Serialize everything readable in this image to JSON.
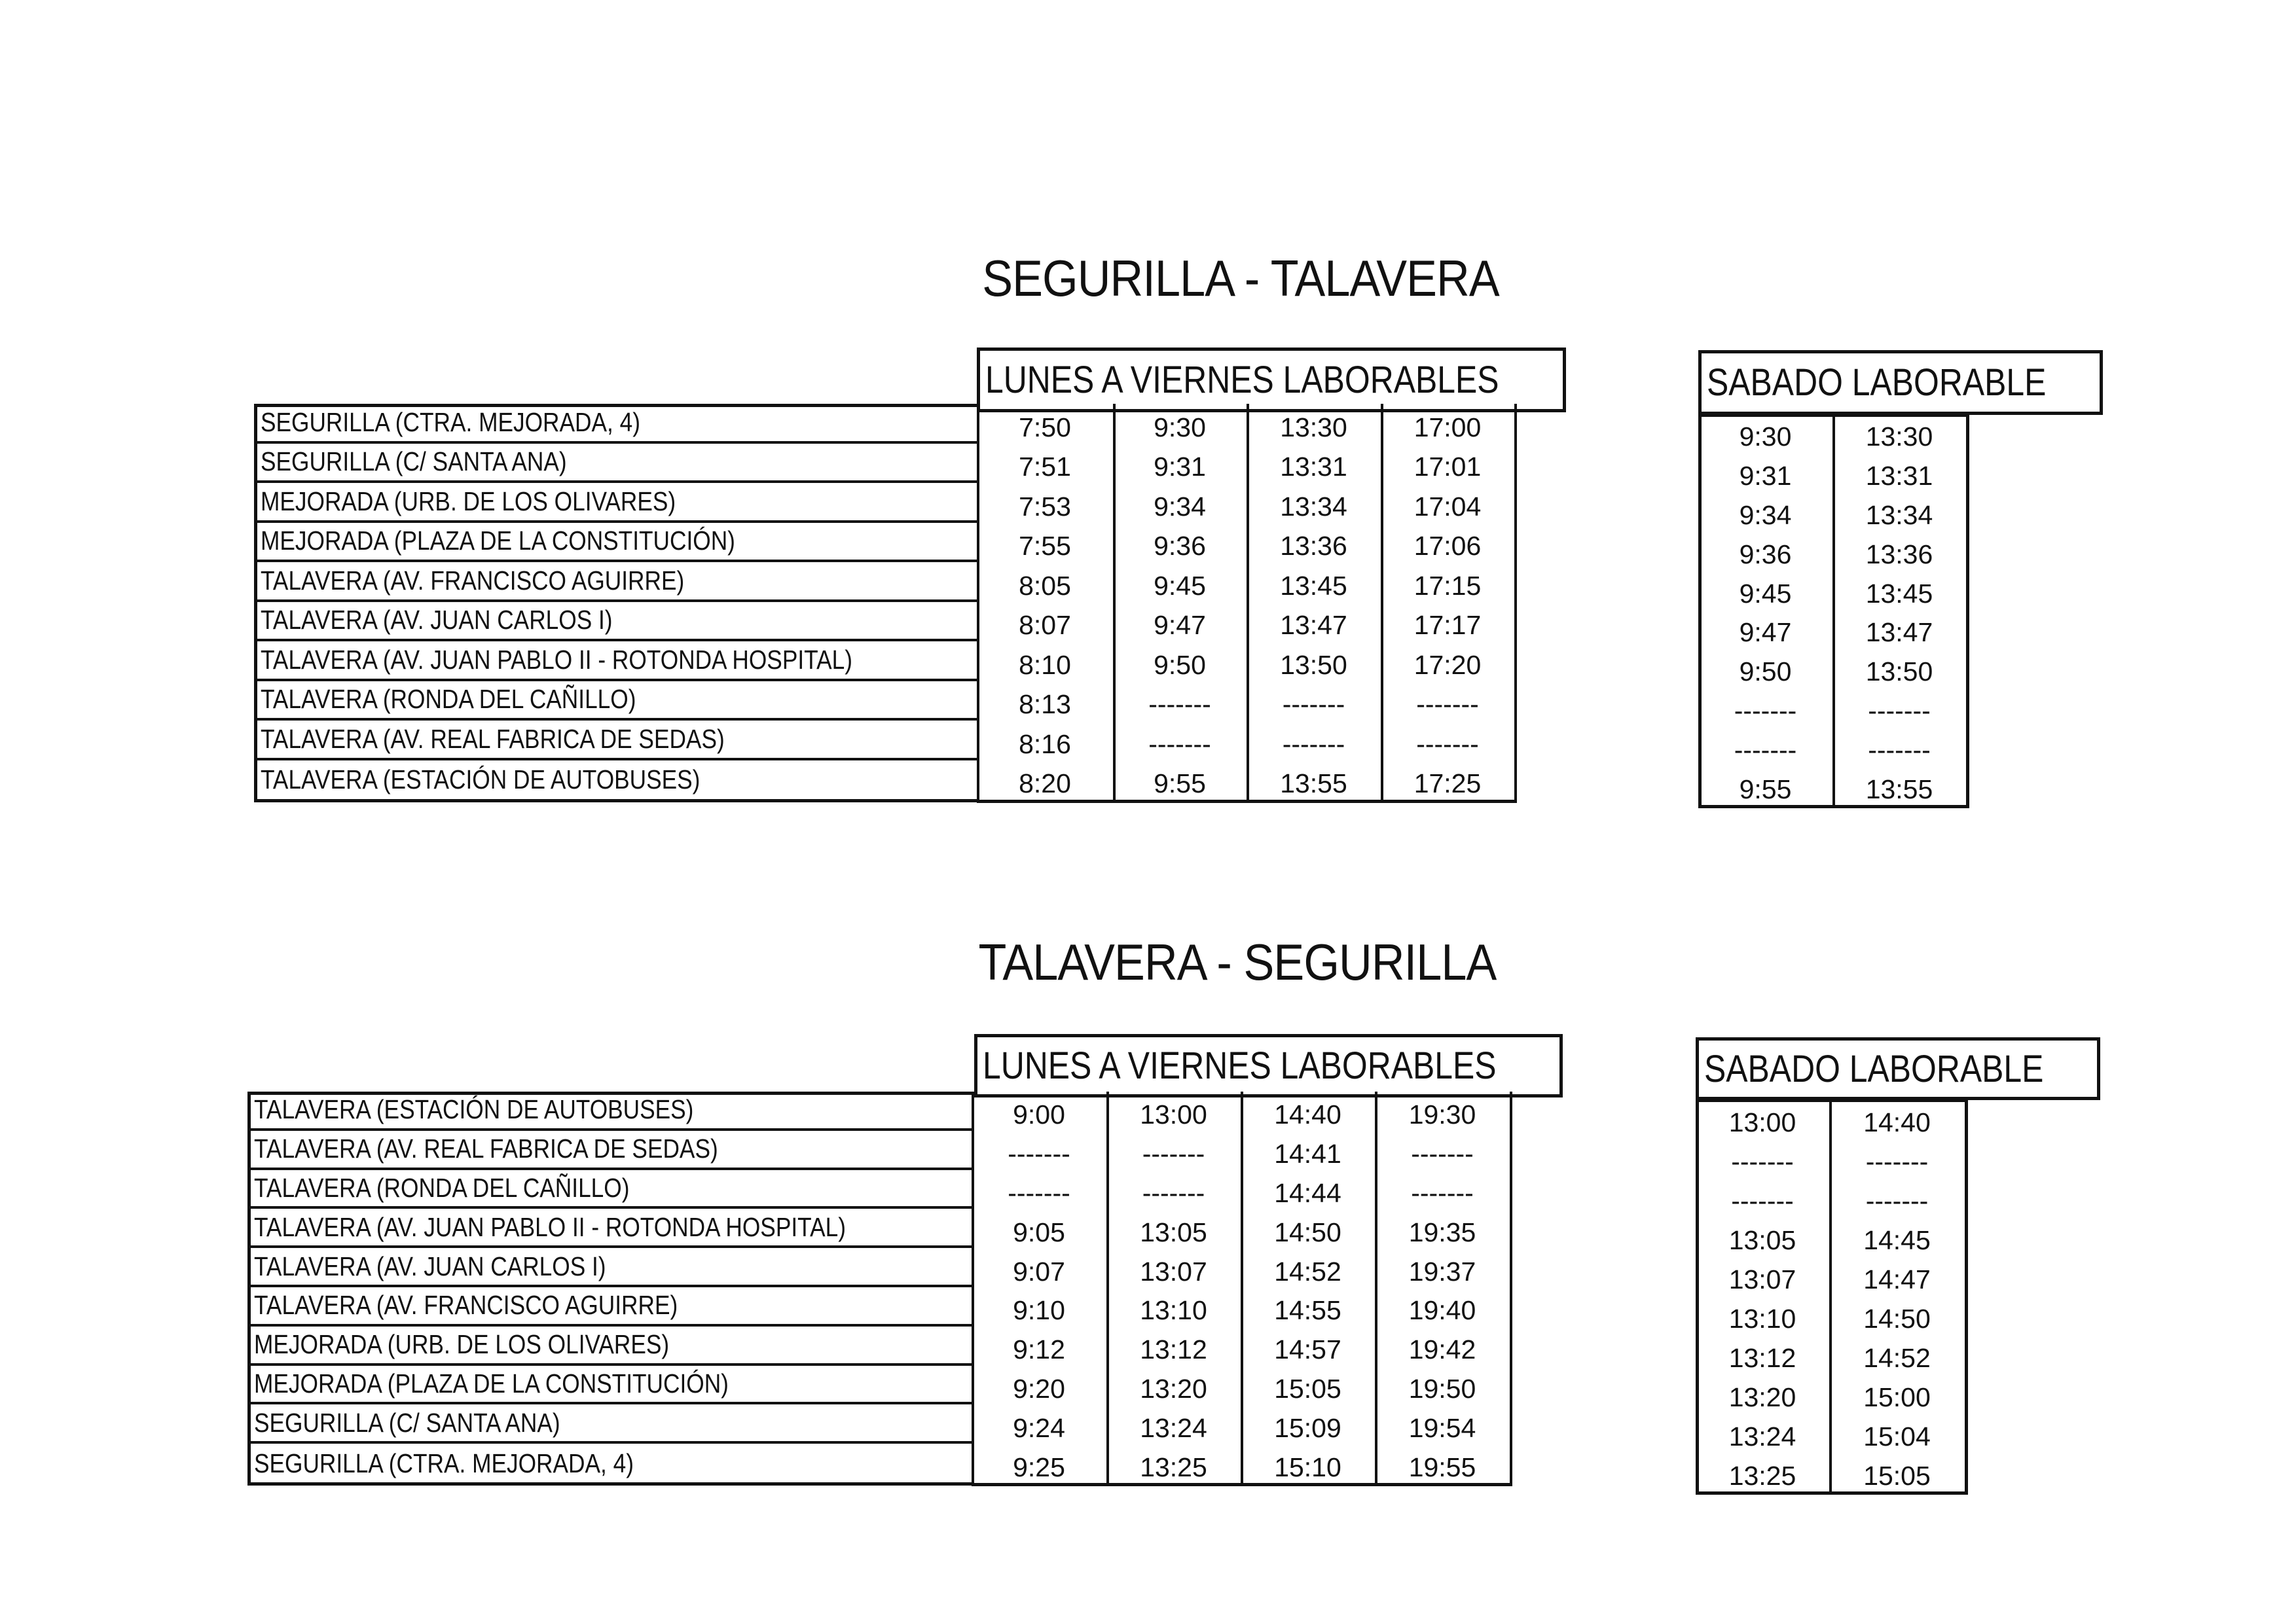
{
  "sections": [
    {
      "title": "SEGURILLA - TALAVERA",
      "weekday": {
        "header": "LUNES A VIERNES LABORABLES",
        "stops": [
          "SEGURILLA (CTRA. MEJORADA, 4)",
          "SEGURILLA (C/ SANTA ANA)",
          "MEJORADA (URB. DE LOS OLIVARES)",
          "MEJORADA (PLAZA DE LA CONSTITUCIÓN)",
          "TALAVERA (AV. FRANCISCO AGUIRRE)",
          "TALAVERA (AV. JUAN CARLOS I)",
          "TALAVERA (AV. JUAN PABLO II - ROTONDA HOSPITAL)",
          "TALAVERA (RONDA DEL CAÑILLO)",
          "TALAVERA (AV. REAL FABRICA DE SEDAS)",
          "TALAVERA (ESTACIÓN DE AUTOBUSES)"
        ],
        "times": [
          [
            "7:50",
            "9:30",
            "13:30",
            "17:00"
          ],
          [
            "7:51",
            "9:31",
            "13:31",
            "17:01"
          ],
          [
            "7:53",
            "9:34",
            "13:34",
            "17:04"
          ],
          [
            "7:55",
            "9:36",
            "13:36",
            "17:06"
          ],
          [
            "8:05",
            "9:45",
            "13:45",
            "17:15"
          ],
          [
            "8:07",
            "9:47",
            "13:47",
            "17:17"
          ],
          [
            "8:10",
            "9:50",
            "13:50",
            "17:20"
          ],
          [
            "8:13",
            "-------",
            "-------",
            "-------"
          ],
          [
            "8:16",
            "-------",
            "-------",
            "-------"
          ],
          [
            "8:20",
            "9:55",
            "13:55",
            "17:25"
          ]
        ]
      },
      "saturday": {
        "header": "SABADO LABORABLE",
        "times": [
          [
            "9:30",
            "13:30"
          ],
          [
            "9:31",
            "13:31"
          ],
          [
            "9:34",
            "13:34"
          ],
          [
            "9:36",
            "13:36"
          ],
          [
            "9:45",
            "13:45"
          ],
          [
            "9:47",
            "13:47"
          ],
          [
            "9:50",
            "13:50"
          ],
          [
            "-------",
            "-------"
          ],
          [
            "-------",
            "-------"
          ],
          [
            "9:55",
            "13:55"
          ]
        ]
      }
    },
    {
      "title": "TALAVERA - SEGURILLA",
      "weekday": {
        "header": "LUNES A VIERNES LABORABLES",
        "stops": [
          "TALAVERA (ESTACIÓN DE AUTOBUSES)",
          "TALAVERA (AV. REAL FABRICA DE SEDAS)",
          "TALAVERA (RONDA DEL CAÑILLO)",
          "TALAVERA (AV. JUAN PABLO II - ROTONDA HOSPITAL)",
          "TALAVERA (AV. JUAN CARLOS I)",
          "TALAVERA (AV. FRANCISCO AGUIRRE)",
          "MEJORADA (URB. DE LOS OLIVARES)",
          "MEJORADA (PLAZA DE LA CONSTITUCIÓN)",
          "SEGURILLA (C/ SANTA ANA)",
          "SEGURILLA (CTRA. MEJORADA, 4)"
        ],
        "times": [
          [
            "9:00",
            "13:00",
            "14:40",
            "19:30"
          ],
          [
            "-------",
            "-------",
            "14:41",
            "-------"
          ],
          [
            "-------",
            "-------",
            "14:44",
            "-------"
          ],
          [
            "9:05",
            "13:05",
            "14:50",
            "19:35"
          ],
          [
            "9:07",
            "13:07",
            "14:52",
            "19:37"
          ],
          [
            "9:10",
            "13:10",
            "14:55",
            "19:40"
          ],
          [
            "9:12",
            "13:12",
            "14:57",
            "19:42"
          ],
          [
            "9:20",
            "13:20",
            "15:05",
            "19:50"
          ],
          [
            "9:24",
            "13:24",
            "15:09",
            "19:54"
          ],
          [
            "9:25",
            "13:25",
            "15:10",
            "19:55"
          ]
        ]
      },
      "saturday": {
        "header": "SABADO LABORABLE",
        "times": [
          [
            "13:00",
            "14:40"
          ],
          [
            "-------",
            "-------"
          ],
          [
            "-------",
            "-------"
          ],
          [
            "13:05",
            "14:45"
          ],
          [
            "13:07",
            "14:47"
          ],
          [
            "13:10",
            "14:50"
          ],
          [
            "13:12",
            "14:52"
          ],
          [
            "13:20",
            "15:00"
          ],
          [
            "13:24",
            "15:04"
          ],
          [
            "13:25",
            "15:05"
          ]
        ]
      }
    }
  ]
}
